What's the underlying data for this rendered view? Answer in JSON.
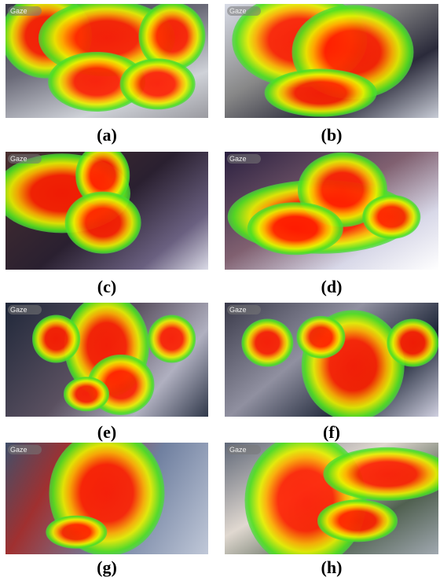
{
  "figure": {
    "panels": [
      {
        "overlay_label": "Gaze",
        "caption": "(a)"
      },
      {
        "overlay_label": "Gaze",
        "caption": "(b)"
      },
      {
        "overlay_label": "Gaze",
        "caption": "(c)"
      },
      {
        "overlay_label": "Gaze",
        "caption": "(d)"
      },
      {
        "overlay_label": "Gaze",
        "caption": "(e)"
      },
      {
        "overlay_label": "Gaze",
        "caption": "(f)"
      },
      {
        "overlay_label": "Gaze",
        "caption": "(g)"
      },
      {
        "overlay_label": "Gaze",
        "caption": "(h)"
      }
    ]
  }
}
